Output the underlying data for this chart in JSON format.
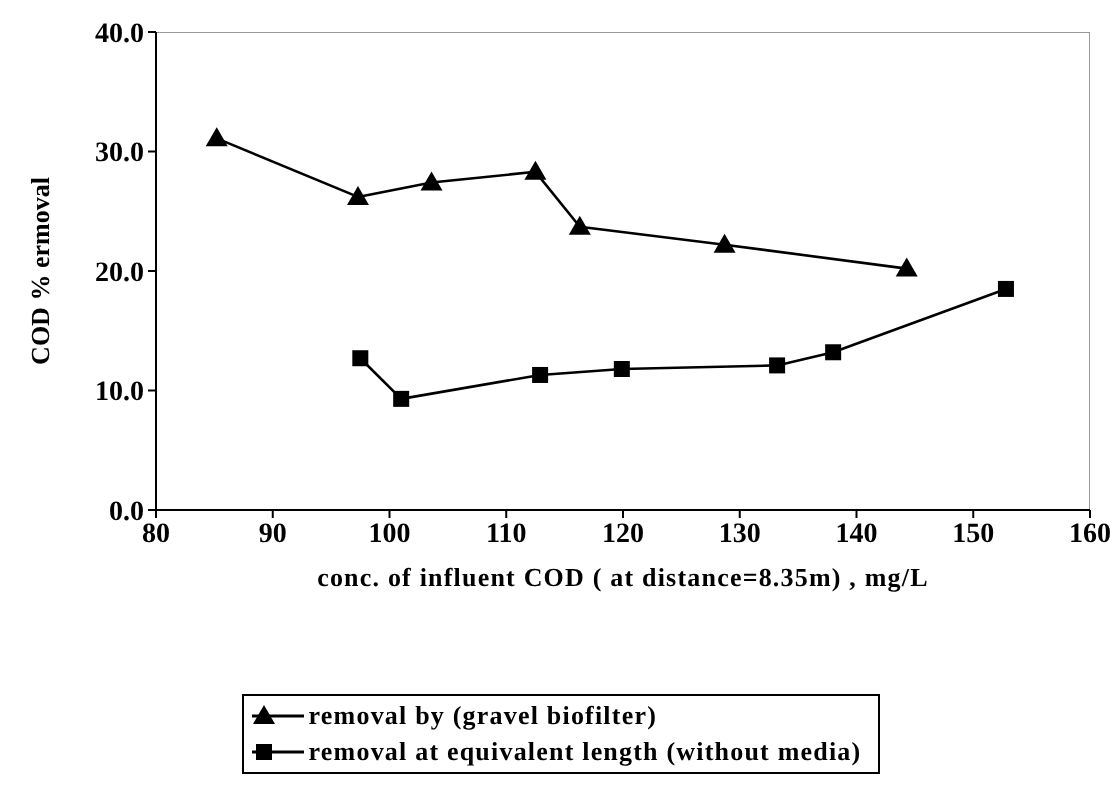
{
  "chart_data": {
    "type": "line",
    "xlabel": "conc. of influent COD ( at distance=8.35m) , mg/L",
    "ylabel": "COD % ermoval",
    "xlim": [
      80,
      160
    ],
    "xticks": [
      80,
      90,
      100,
      110,
      120,
      130,
      140,
      150,
      160
    ],
    "ylim": [
      0,
      40
    ],
    "yticks": [
      {
        "value": 0,
        "label": "0.0"
      },
      {
        "value": 10,
        "label": "10.0"
      },
      {
        "value": 20,
        "label": "20.0"
      },
      {
        "value": 30,
        "label": "30.0"
      },
      {
        "value": 40,
        "label": "40.0"
      }
    ],
    "grid": false,
    "legend": "bottom",
    "line_style": "solid",
    "series": [
      {
        "name": "removal by (gravel biofilter)",
        "color": "#000000",
        "marker": "triangle",
        "x": [
          85.2,
          97.3,
          103.6,
          112.5,
          116.3,
          128.7,
          144.3
        ],
        "values": [
          31.1,
          26.2,
          27.4,
          28.3,
          23.7,
          22.2,
          20.2
        ]
      },
      {
        "name": "removal at equivalent length (without media)",
        "color": "#000000",
        "marker": "square",
        "x": [
          97.5,
          101.0,
          112.9,
          119.9,
          133.2,
          138.0,
          152.8
        ],
        "values": [
          12.7,
          9.3,
          11.3,
          11.8,
          12.1,
          13.2,
          18.5
        ]
      }
    ]
  }
}
